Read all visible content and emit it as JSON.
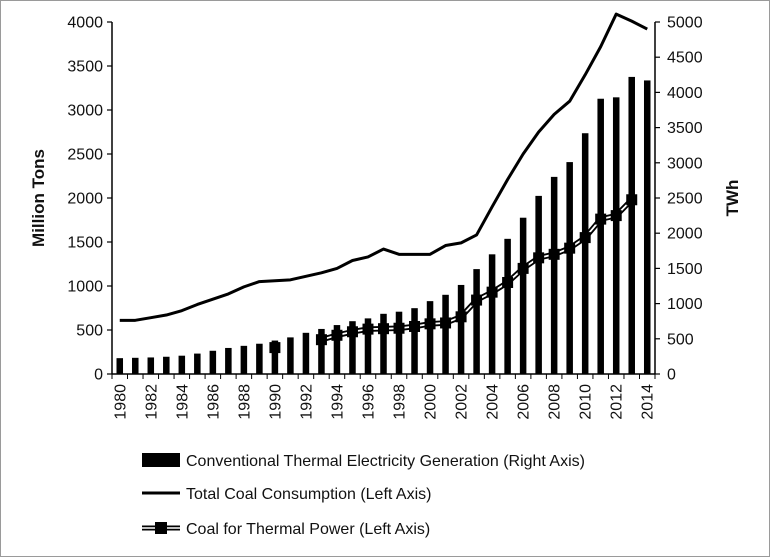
{
  "chart_data": {
    "type": "bar",
    "x": [
      1980,
      1981,
      1982,
      1983,
      1984,
      1985,
      1986,
      1987,
      1988,
      1989,
      1990,
      1991,
      1992,
      1993,
      1994,
      1995,
      1996,
      1997,
      1998,
      1999,
      2000,
      2001,
      2002,
      2003,
      2004,
      2005,
      2006,
      2007,
      2008,
      2009,
      2010,
      2011,
      2012,
      2013,
      2014
    ],
    "x_tick_labels": [
      "1980",
      "1982",
      "1984",
      "1986",
      "1988",
      "1990",
      "1992",
      "1994",
      "1996",
      "1998",
      "2000",
      "2002",
      "2004",
      "2006",
      "2008",
      "2010",
      "2012",
      "2014"
    ],
    "ylabel": "Million Tons",
    "y2label": "TWh",
    "ylim": [
      0,
      4000
    ],
    "y2lim": [
      0,
      5000
    ],
    "yticks": [
      0,
      500,
      1000,
      1500,
      2000,
      2500,
      3000,
      3500,
      4000
    ],
    "y2ticks": [
      0,
      500,
      1000,
      1500,
      2000,
      2500,
      3000,
      3500,
      4000,
      4500,
      5000
    ],
    "grid": false,
    "legend_position": "bottom",
    "series": [
      {
        "name": "Conventional Thermal Electricity Generation (Right Axis)",
        "kind": "bar",
        "axis": "right",
        "color": "#000000",
        "values": [
          225,
          230,
          235,
          245,
          260,
          290,
          330,
          370,
          400,
          430,
          475,
          520,
          585,
          640,
          695,
          750,
          790,
          855,
          885,
          935,
          1035,
          1125,
          1265,
          1490,
          1700,
          1920,
          2220,
          2530,
          2800,
          3010,
          3420,
          3910,
          3930,
          4220,
          4170
        ]
      },
      {
        "name": "Total Coal Consumption (Left Axis)",
        "kind": "line",
        "axis": "left",
        "color": "#000000",
        "values": [
          610,
          610,
          640,
          670,
          720,
          790,
          850,
          910,
          990,
          1050,
          1060,
          1070,
          1110,
          1150,
          1200,
          1290,
          1330,
          1420,
          1360,
          1360,
          1360,
          1460,
          1490,
          1580,
          1900,
          2210,
          2500,
          2750,
          2950,
          3100,
          3400,
          3720,
          4090,
          4010,
          3920
        ]
      },
      {
        "name": "Coal for Thermal Power (Left Axis)",
        "kind": "line-marker",
        "axis": "left",
        "color": "#000000",
        "x": [
          1990,
          1993,
          1994,
          1995,
          1996,
          1997,
          1998,
          1999,
          2000,
          2001,
          2002,
          2003,
          2004,
          2005,
          2006,
          2007,
          2008,
          2009,
          2010,
          2011,
          2012,
          2013
        ],
        "values": [
          300,
          390,
          440,
          480,
          510,
          515,
          520,
          540,
          570,
          580,
          650,
          840,
          930,
          1040,
          1200,
          1320,
          1360,
          1430,
          1550,
          1760,
          1800,
          1980
        ]
      }
    ]
  }
}
